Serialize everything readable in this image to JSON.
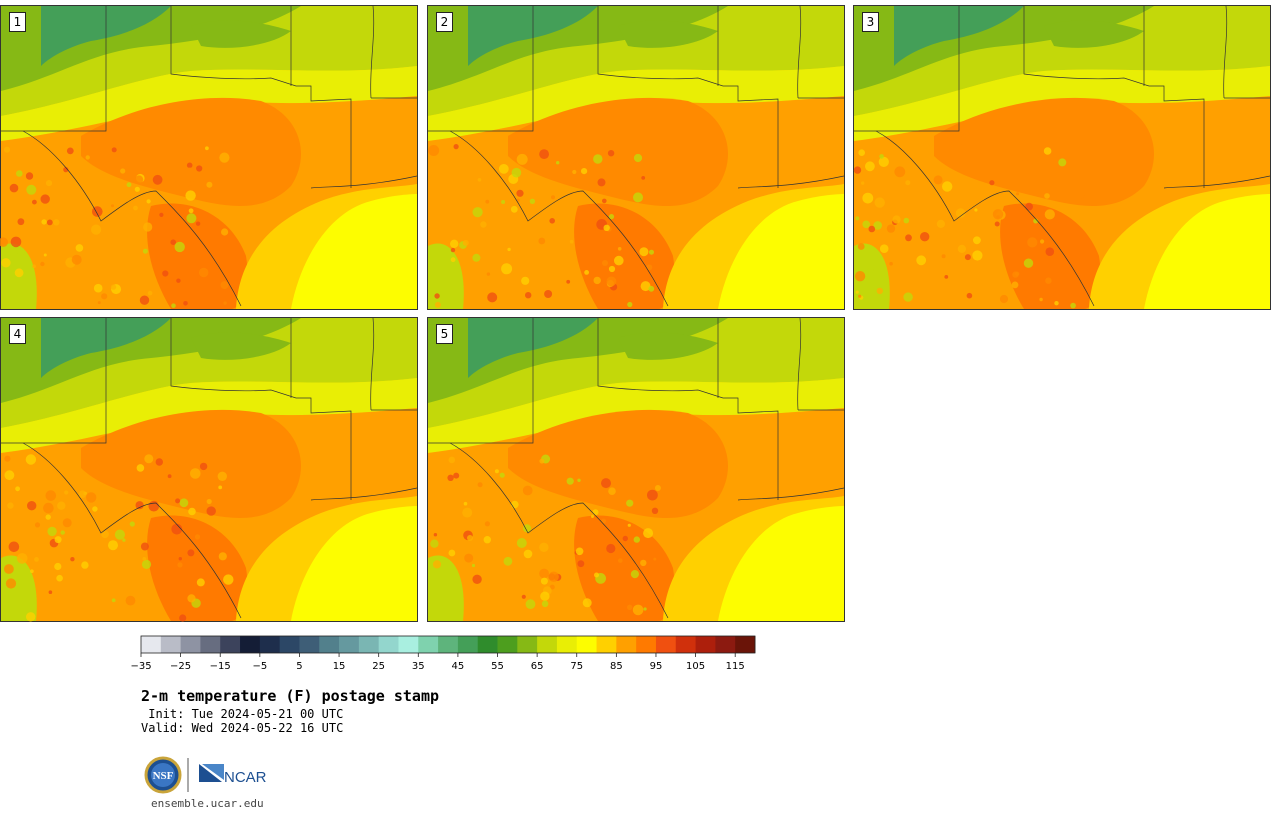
{
  "panels": [
    {
      "label": "1"
    },
    {
      "label": "2"
    },
    {
      "label": "3"
    },
    {
      "label": "4"
    },
    {
      "label": "5"
    }
  ],
  "colorbar": {
    "tick_labels": [
      "−35",
      "−25",
      "−15",
      "−5",
      "5",
      "15",
      "25",
      "35",
      "45",
      "55",
      "65",
      "75",
      "85",
      "95",
      "105",
      "115"
    ],
    "colors": [
      "#e6e8ee",
      "#b9bcc7",
      "#8e93a3",
      "#676d80",
      "#3c435c",
      "#141d36",
      "#1e2e4c",
      "#2c4766",
      "#3e5e77",
      "#52808c",
      "#65999f",
      "#7ab6b3",
      "#93d6cd",
      "#a9efe0",
      "#7fd2ae",
      "#5eb47c",
      "#449f58",
      "#2f8c2c",
      "#4d9e1e",
      "#86b915",
      "#c3d80a",
      "#e9ee05",
      "#fdfd00",
      "#ffd000",
      "#ffa000",
      "#ff7a00",
      "#f05010",
      "#d0300c",
      "#ad1f0c",
      "#8c1a10",
      "#6a1408"
    ]
  },
  "title": "2-m temperature (F) postage stamp",
  "init": " Init: Tue 2024-05-21 00 UTC",
  "valid": "Valid: Wed 2024-05-22 16 UTC",
  "logos": {
    "left": "NSF",
    "right": "NCAR"
  },
  "url": "ensemble.ucar.edu"
}
